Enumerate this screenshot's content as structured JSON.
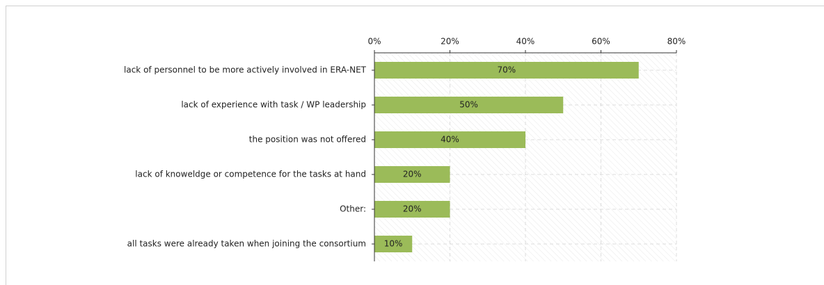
{
  "chart_data": {
    "type": "bar",
    "orientation": "horizontal",
    "categories": [
      "lack of personnel to be more actively involved in ERA-NET",
      "lack of experience with task / WP leadership",
      "the position was not offered",
      "lack of knoweldge or competence for the tasks at hand",
      "Other:",
      "all tasks were already taken when joining the consortium"
    ],
    "values": [
      70,
      50,
      40,
      20,
      20,
      10
    ],
    "value_labels": [
      "70%",
      "50%",
      "40%",
      "20%",
      "20%",
      "10%"
    ],
    "color": "#9bbb59",
    "xlim": [
      0,
      80
    ],
    "xticks": [
      {
        "value": 0,
        "label": "0%"
      },
      {
        "value": 20,
        "label": "20%"
      },
      {
        "value": 40,
        "label": "40%"
      },
      {
        "value": 60,
        "label": "60%"
      },
      {
        "value": 80,
        "label": "80%"
      }
    ],
    "grid": true
  }
}
